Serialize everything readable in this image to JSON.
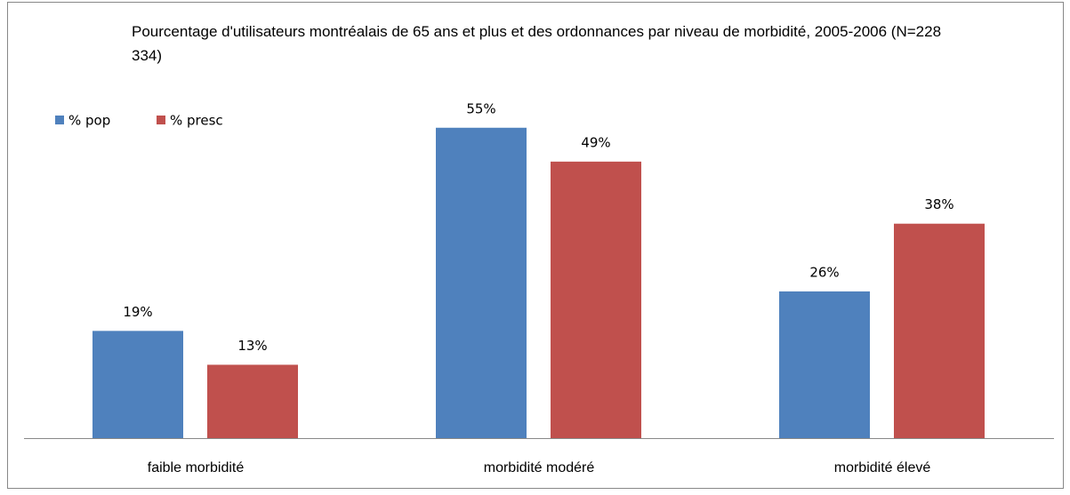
{
  "chart_data": {
    "type": "bar",
    "title": "Pourcentage d'utilisateurs montréalais de 65 ans et plus et des ordonnances par niveau de morbidité, 2005-2006 (N=228 334)",
    "categories": [
      "faible morbidité",
      "morbidité modéré",
      "morbidité élevé"
    ],
    "series": [
      {
        "name": "% pop",
        "color": "#4f81bd",
        "values": [
          19,
          55,
          26
        ],
        "value_labels": [
          "19%",
          "55%",
          "26%"
        ]
      },
      {
        "name": "% presc",
        "color": "#c0504d",
        "values": [
          13,
          49,
          38
        ],
        "value_labels": [
          "13%",
          "49%",
          "38%"
        ]
      }
    ],
    "legend": "top-left"
  }
}
